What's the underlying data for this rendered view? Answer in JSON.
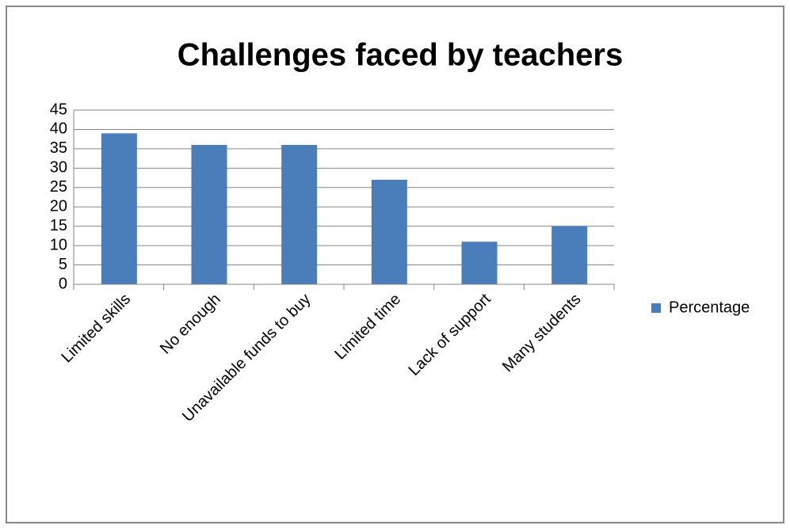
{
  "chart_data": {
    "type": "bar",
    "title": "Challenges faced by teachers",
    "categories": [
      "Limited skills",
      "No enough",
      "Unavailable funds to buy",
      "Limited time",
      "Lack of support",
      "Many students"
    ],
    "series": [
      {
        "name": "Percentage",
        "color": "#4a7ebb",
        "values": [
          39,
          36,
          36,
          27,
          11,
          15
        ]
      }
    ],
    "ylim": [
      0,
      45
    ],
    "yticks": [
      0,
      5,
      10,
      15,
      20,
      25,
      30,
      35,
      40,
      45
    ],
    "grid": true,
    "legend": "right"
  }
}
